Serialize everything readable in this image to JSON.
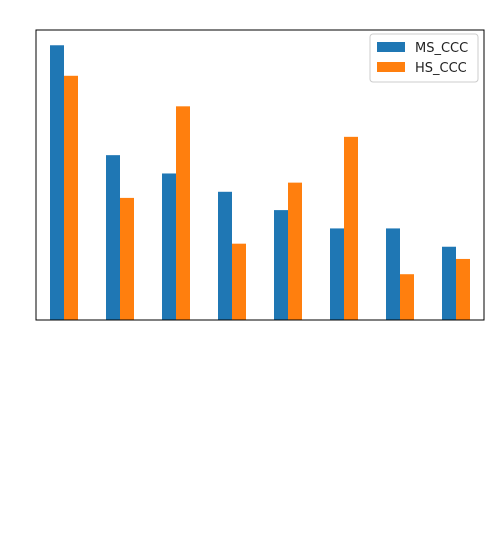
{
  "chart_data": {
    "type": "bar",
    "title": "",
    "xlabel": "",
    "ylabel": "",
    "categories": [
      "",
      "",
      "",
      "",
      "",
      "",
      "",
      ""
    ],
    "ylim": [
      0,
      9.5
    ],
    "grid": false,
    "legend_position": "top-right",
    "series": [
      {
        "name": "MS_CCC",
        "color": "#1f77b4",
        "values": [
          9.0,
          5.4,
          4.8,
          4.2,
          3.6,
          3.0,
          3.0,
          2.4
        ]
      },
      {
        "name": "HS_CCC",
        "color": "#ff7f0e",
        "values": [
          8.0,
          4.0,
          7.0,
          2.5,
          4.5,
          6.0,
          1.5,
          2.0
        ]
      }
    ]
  }
}
